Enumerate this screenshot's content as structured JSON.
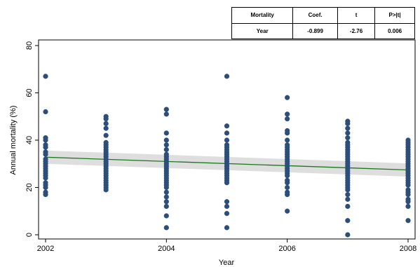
{
  "stats_table": {
    "headers": [
      "Mortality",
      "Coef.",
      "t",
      "P>|t|"
    ],
    "rows": [
      [
        "Year",
        "-0.899",
        "-2.76",
        "0.006"
      ]
    ]
  },
  "chart_data": {
    "type": "scatter",
    "title": "",
    "xlabel": "Year",
    "ylabel": "Annual mortality (%)",
    "xlim": [
      2002,
      2008
    ],
    "ylim": [
      0,
      80
    ],
    "xticks": [
      "2002",
      "2004",
      "2006",
      "2008"
    ],
    "yticks": [
      "0",
      "20",
      "40",
      "60",
      "80"
    ],
    "grid": false,
    "point_color": "#2d4e78",
    "fit_color": "#1a7a1a",
    "ci_color": "#d3d3d3",
    "fit_line": {
      "y_start": 32.8,
      "y_end": 27.4,
      "ci_half_width": 2.8
    },
    "points": [
      {
        "x": 2002,
        "y": 67
      },
      {
        "x": 2002,
        "y": 52
      },
      {
        "x": 2002,
        "y": 41
      },
      {
        "x": 2002,
        "y": 40
      },
      {
        "x": 2002,
        "y": 38
      },
      {
        "x": 2002,
        "y": 37
      },
      {
        "x": 2002,
        "y": 35
      },
      {
        "x": 2002,
        "y": 34
      },
      {
        "x": 2002,
        "y": 32
      },
      {
        "x": 2002,
        "y": 31
      },
      {
        "x": 2002,
        "y": 30
      },
      {
        "x": 2002,
        "y": 29
      },
      {
        "x": 2002,
        "y": 28
      },
      {
        "x": 2002,
        "y": 27
      },
      {
        "x": 2002,
        "y": 26
      },
      {
        "x": 2002,
        "y": 25
      },
      {
        "x": 2002,
        "y": 24
      },
      {
        "x": 2002,
        "y": 22
      },
      {
        "x": 2002,
        "y": 21
      },
      {
        "x": 2002,
        "y": 20
      },
      {
        "x": 2002,
        "y": 18
      },
      {
        "x": 2002,
        "y": 17
      },
      {
        "x": 2003,
        "y": 50
      },
      {
        "x": 2003,
        "y": 49
      },
      {
        "x": 2003,
        "y": 47
      },
      {
        "x": 2003,
        "y": 45
      },
      {
        "x": 2003,
        "y": 42
      },
      {
        "x": 2003,
        "y": 39
      },
      {
        "x": 2003,
        "y": 38
      },
      {
        "x": 2003,
        "y": 37
      },
      {
        "x": 2003,
        "y": 36
      },
      {
        "x": 2003,
        "y": 35
      },
      {
        "x": 2003,
        "y": 34
      },
      {
        "x": 2003,
        "y": 33
      },
      {
        "x": 2003,
        "y": 32
      },
      {
        "x": 2003,
        "y": 31
      },
      {
        "x": 2003,
        "y": 30
      },
      {
        "x": 2003,
        "y": 29
      },
      {
        "x": 2003,
        "y": 28
      },
      {
        "x": 2003,
        "y": 27
      },
      {
        "x": 2003,
        "y": 26
      },
      {
        "x": 2003,
        "y": 25
      },
      {
        "x": 2003,
        "y": 24
      },
      {
        "x": 2003,
        "y": 23
      },
      {
        "x": 2003,
        "y": 22
      },
      {
        "x": 2003,
        "y": 21
      },
      {
        "x": 2003,
        "y": 20
      },
      {
        "x": 2003,
        "y": 19
      },
      {
        "x": 2004,
        "y": 53
      },
      {
        "x": 2004,
        "y": 51
      },
      {
        "x": 2004,
        "y": 43
      },
      {
        "x": 2004,
        "y": 40
      },
      {
        "x": 2004,
        "y": 38
      },
      {
        "x": 2004,
        "y": 36
      },
      {
        "x": 2004,
        "y": 34
      },
      {
        "x": 2004,
        "y": 33
      },
      {
        "x": 2004,
        "y": 32
      },
      {
        "x": 2004,
        "y": 31
      },
      {
        "x": 2004,
        "y": 30
      },
      {
        "x": 2004,
        "y": 29
      },
      {
        "x": 2004,
        "y": 28
      },
      {
        "x": 2004,
        "y": 27
      },
      {
        "x": 2004,
        "y": 26
      },
      {
        "x": 2004,
        "y": 25
      },
      {
        "x": 2004,
        "y": 24
      },
      {
        "x": 2004,
        "y": 23
      },
      {
        "x": 2004,
        "y": 22
      },
      {
        "x": 2004,
        "y": 21
      },
      {
        "x": 2004,
        "y": 20
      },
      {
        "x": 2004,
        "y": 18
      },
      {
        "x": 2004,
        "y": 16
      },
      {
        "x": 2004,
        "y": 14
      },
      {
        "x": 2004,
        "y": 12
      },
      {
        "x": 2004,
        "y": 8
      },
      {
        "x": 2004,
        "y": 3
      },
      {
        "x": 2005,
        "y": 67
      },
      {
        "x": 2005,
        "y": 46
      },
      {
        "x": 2005,
        "y": 43
      },
      {
        "x": 2005,
        "y": 40
      },
      {
        "x": 2005,
        "y": 38
      },
      {
        "x": 2005,
        "y": 37
      },
      {
        "x": 2005,
        "y": 36
      },
      {
        "x": 2005,
        "y": 35
      },
      {
        "x": 2005,
        "y": 34
      },
      {
        "x": 2005,
        "y": 33
      },
      {
        "x": 2005,
        "y": 32
      },
      {
        "x": 2005,
        "y": 31
      },
      {
        "x": 2005,
        "y": 30
      },
      {
        "x": 2005,
        "y": 29
      },
      {
        "x": 2005,
        "y": 28
      },
      {
        "x": 2005,
        "y": 27
      },
      {
        "x": 2005,
        "y": 26
      },
      {
        "x": 2005,
        "y": 25
      },
      {
        "x": 2005,
        "y": 24
      },
      {
        "x": 2005,
        "y": 23
      },
      {
        "x": 2005,
        "y": 22
      },
      {
        "x": 2005,
        "y": 14
      },
      {
        "x": 2005,
        "y": 12
      },
      {
        "x": 2005,
        "y": 9
      },
      {
        "x": 2005,
        "y": 3
      },
      {
        "x": 2006,
        "y": 58
      },
      {
        "x": 2006,
        "y": 51
      },
      {
        "x": 2006,
        "y": 49
      },
      {
        "x": 2006,
        "y": 44
      },
      {
        "x": 2006,
        "y": 43
      },
      {
        "x": 2006,
        "y": 40
      },
      {
        "x": 2006,
        "y": 38
      },
      {
        "x": 2006,
        "y": 37
      },
      {
        "x": 2006,
        "y": 36
      },
      {
        "x": 2006,
        "y": 35
      },
      {
        "x": 2006,
        "y": 34
      },
      {
        "x": 2006,
        "y": 33
      },
      {
        "x": 2006,
        "y": 32
      },
      {
        "x": 2006,
        "y": 31
      },
      {
        "x": 2006,
        "y": 30
      },
      {
        "x": 2006,
        "y": 29
      },
      {
        "x": 2006,
        "y": 28
      },
      {
        "x": 2006,
        "y": 27
      },
      {
        "x": 2006,
        "y": 26
      },
      {
        "x": 2006,
        "y": 25
      },
      {
        "x": 2006,
        "y": 23
      },
      {
        "x": 2006,
        "y": 22
      },
      {
        "x": 2006,
        "y": 20
      },
      {
        "x": 2006,
        "y": 18
      },
      {
        "x": 2006,
        "y": 17
      },
      {
        "x": 2006,
        "y": 10
      },
      {
        "x": 2007,
        "y": 48
      },
      {
        "x": 2007,
        "y": 47
      },
      {
        "x": 2007,
        "y": 45
      },
      {
        "x": 2007,
        "y": 43
      },
      {
        "x": 2007,
        "y": 41
      },
      {
        "x": 2007,
        "y": 39
      },
      {
        "x": 2007,
        "y": 38
      },
      {
        "x": 2007,
        "y": 37
      },
      {
        "x": 2007,
        "y": 36
      },
      {
        "x": 2007,
        "y": 35
      },
      {
        "x": 2007,
        "y": 34
      },
      {
        "x": 2007,
        "y": 33
      },
      {
        "x": 2007,
        "y": 32
      },
      {
        "x": 2007,
        "y": 31
      },
      {
        "x": 2007,
        "y": 30
      },
      {
        "x": 2007,
        "y": 29
      },
      {
        "x": 2007,
        "y": 28
      },
      {
        "x": 2007,
        "y": 27
      },
      {
        "x": 2007,
        "y": 26
      },
      {
        "x": 2007,
        "y": 25
      },
      {
        "x": 2007,
        "y": 24
      },
      {
        "x": 2007,
        "y": 23
      },
      {
        "x": 2007,
        "y": 22
      },
      {
        "x": 2007,
        "y": 21
      },
      {
        "x": 2007,
        "y": 20
      },
      {
        "x": 2007,
        "y": 19
      },
      {
        "x": 2007,
        "y": 17
      },
      {
        "x": 2007,
        "y": 15
      },
      {
        "x": 2007,
        "y": 12
      },
      {
        "x": 2007,
        "y": 6
      },
      {
        "x": 2007,
        "y": 0
      },
      {
        "x": 2008,
        "y": 40
      },
      {
        "x": 2008,
        "y": 39
      },
      {
        "x": 2008,
        "y": 38
      },
      {
        "x": 2008,
        "y": 37
      },
      {
        "x": 2008,
        "y": 36
      },
      {
        "x": 2008,
        "y": 35
      },
      {
        "x": 2008,
        "y": 34
      },
      {
        "x": 2008,
        "y": 33
      },
      {
        "x": 2008,
        "y": 32
      },
      {
        "x": 2008,
        "y": 31
      },
      {
        "x": 2008,
        "y": 30
      },
      {
        "x": 2008,
        "y": 29
      },
      {
        "x": 2008,
        "y": 28
      },
      {
        "x": 2008,
        "y": 27
      },
      {
        "x": 2008,
        "y": 26
      },
      {
        "x": 2008,
        "y": 25
      },
      {
        "x": 2008,
        "y": 24
      },
      {
        "x": 2008,
        "y": 23
      },
      {
        "x": 2008,
        "y": 22
      },
      {
        "x": 2008,
        "y": 21
      },
      {
        "x": 2008,
        "y": 19
      },
      {
        "x": 2008,
        "y": 18
      },
      {
        "x": 2008,
        "y": 17
      },
      {
        "x": 2008,
        "y": 15
      },
      {
        "x": 2008,
        "y": 14
      },
      {
        "x": 2008,
        "y": 12
      },
      {
        "x": 2008,
        "y": 6
      }
    ]
  }
}
